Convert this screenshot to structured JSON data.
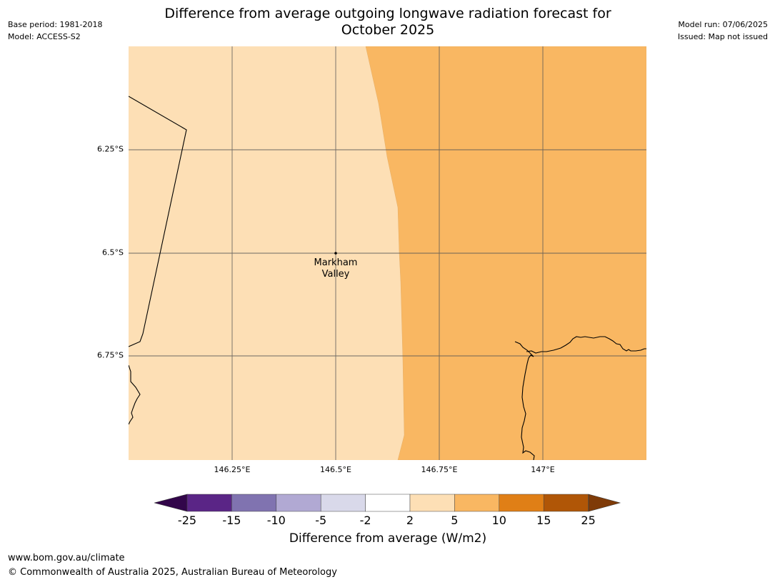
{
  "title_line1": "Difference from average outgoing longwave radiation forecast for",
  "title_line2": "October 2025",
  "base_period": "Base period: 1981-2018",
  "model": "Model: ACCESS-S2",
  "model_run": "Model run: 07/06/2025",
  "issued": "Issued: Map not issued",
  "place": {
    "name_line1": "Markham",
    "name_line2": "Valley"
  },
  "lat_labels": [
    "6.25°S",
    "6.5°S",
    "6.75°S"
  ],
  "lon_labels": [
    "146.25°E",
    "146.5°E",
    "146.75°E",
    "147°E"
  ],
  "colors": {
    "anomaly_2_to_5": "#fddfb5",
    "anomaly_5_to_10": "#f9b762",
    "coastline": "#000000",
    "gridline": "#555555"
  },
  "colorbar": {
    "ticks": [
      "-25",
      "-15",
      "-10",
      "-5",
      "-2",
      "2",
      "5",
      "10",
      "15",
      "25"
    ],
    "colors": [
      "#5a2586",
      "#8073b0",
      "#b1a9d3",
      "#d9d9ea",
      "#ffffff",
      "#fddfb5",
      "#f9b762",
      "#e07f16",
      "#b05607"
    ],
    "under_color": "#32064a",
    "over_color": "#7f3b08",
    "label": "Difference from average (W/m2)"
  },
  "footer": {
    "url": "www.bom.gov.au/climate",
    "copyright": "© Commonwealth of Australia 2025, Australian Bureau of Meteorology"
  }
}
